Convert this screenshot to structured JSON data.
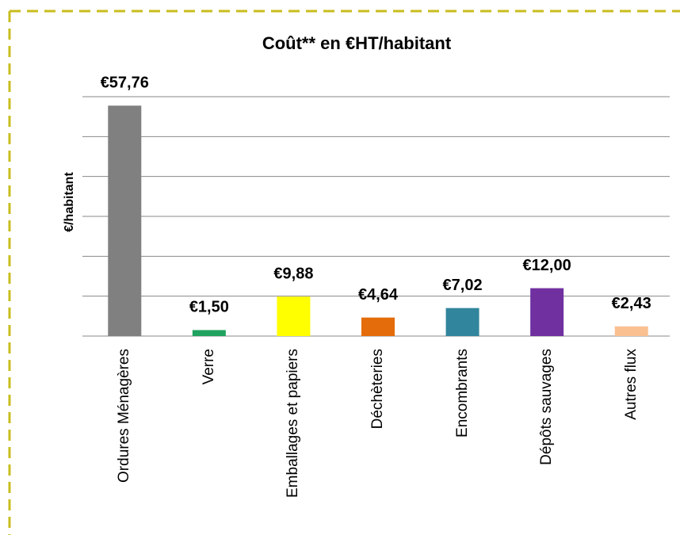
{
  "chart_data": {
    "type": "bar",
    "title": "Coût** en €HT/habitant",
    "y_label": "€/habitant",
    "categories": [
      "Ordures Ménagères",
      "Verre",
      "Emballages et papiers",
      "Déchèteries",
      "Encombrants",
      "Dépôts sauvages",
      "Autres flux"
    ],
    "values": [
      57.76,
      1.5,
      9.88,
      4.64,
      7.02,
      12.0,
      2.43
    ],
    "value_labels": [
      "€57,76",
      "€1,50",
      "€9,88",
      "€4,64",
      "€7,02",
      "€12,00",
      "€2,43"
    ],
    "colors": [
      "#808080",
      "#1fa35f",
      "#ffff00",
      "#e46c0a",
      "#31859c",
      "#7030a0",
      "#fac090"
    ],
    "ylim": [
      0,
      60
    ],
    "yticks": [
      0,
      10,
      20,
      30,
      40,
      50,
      60
    ],
    "grid": true
  }
}
